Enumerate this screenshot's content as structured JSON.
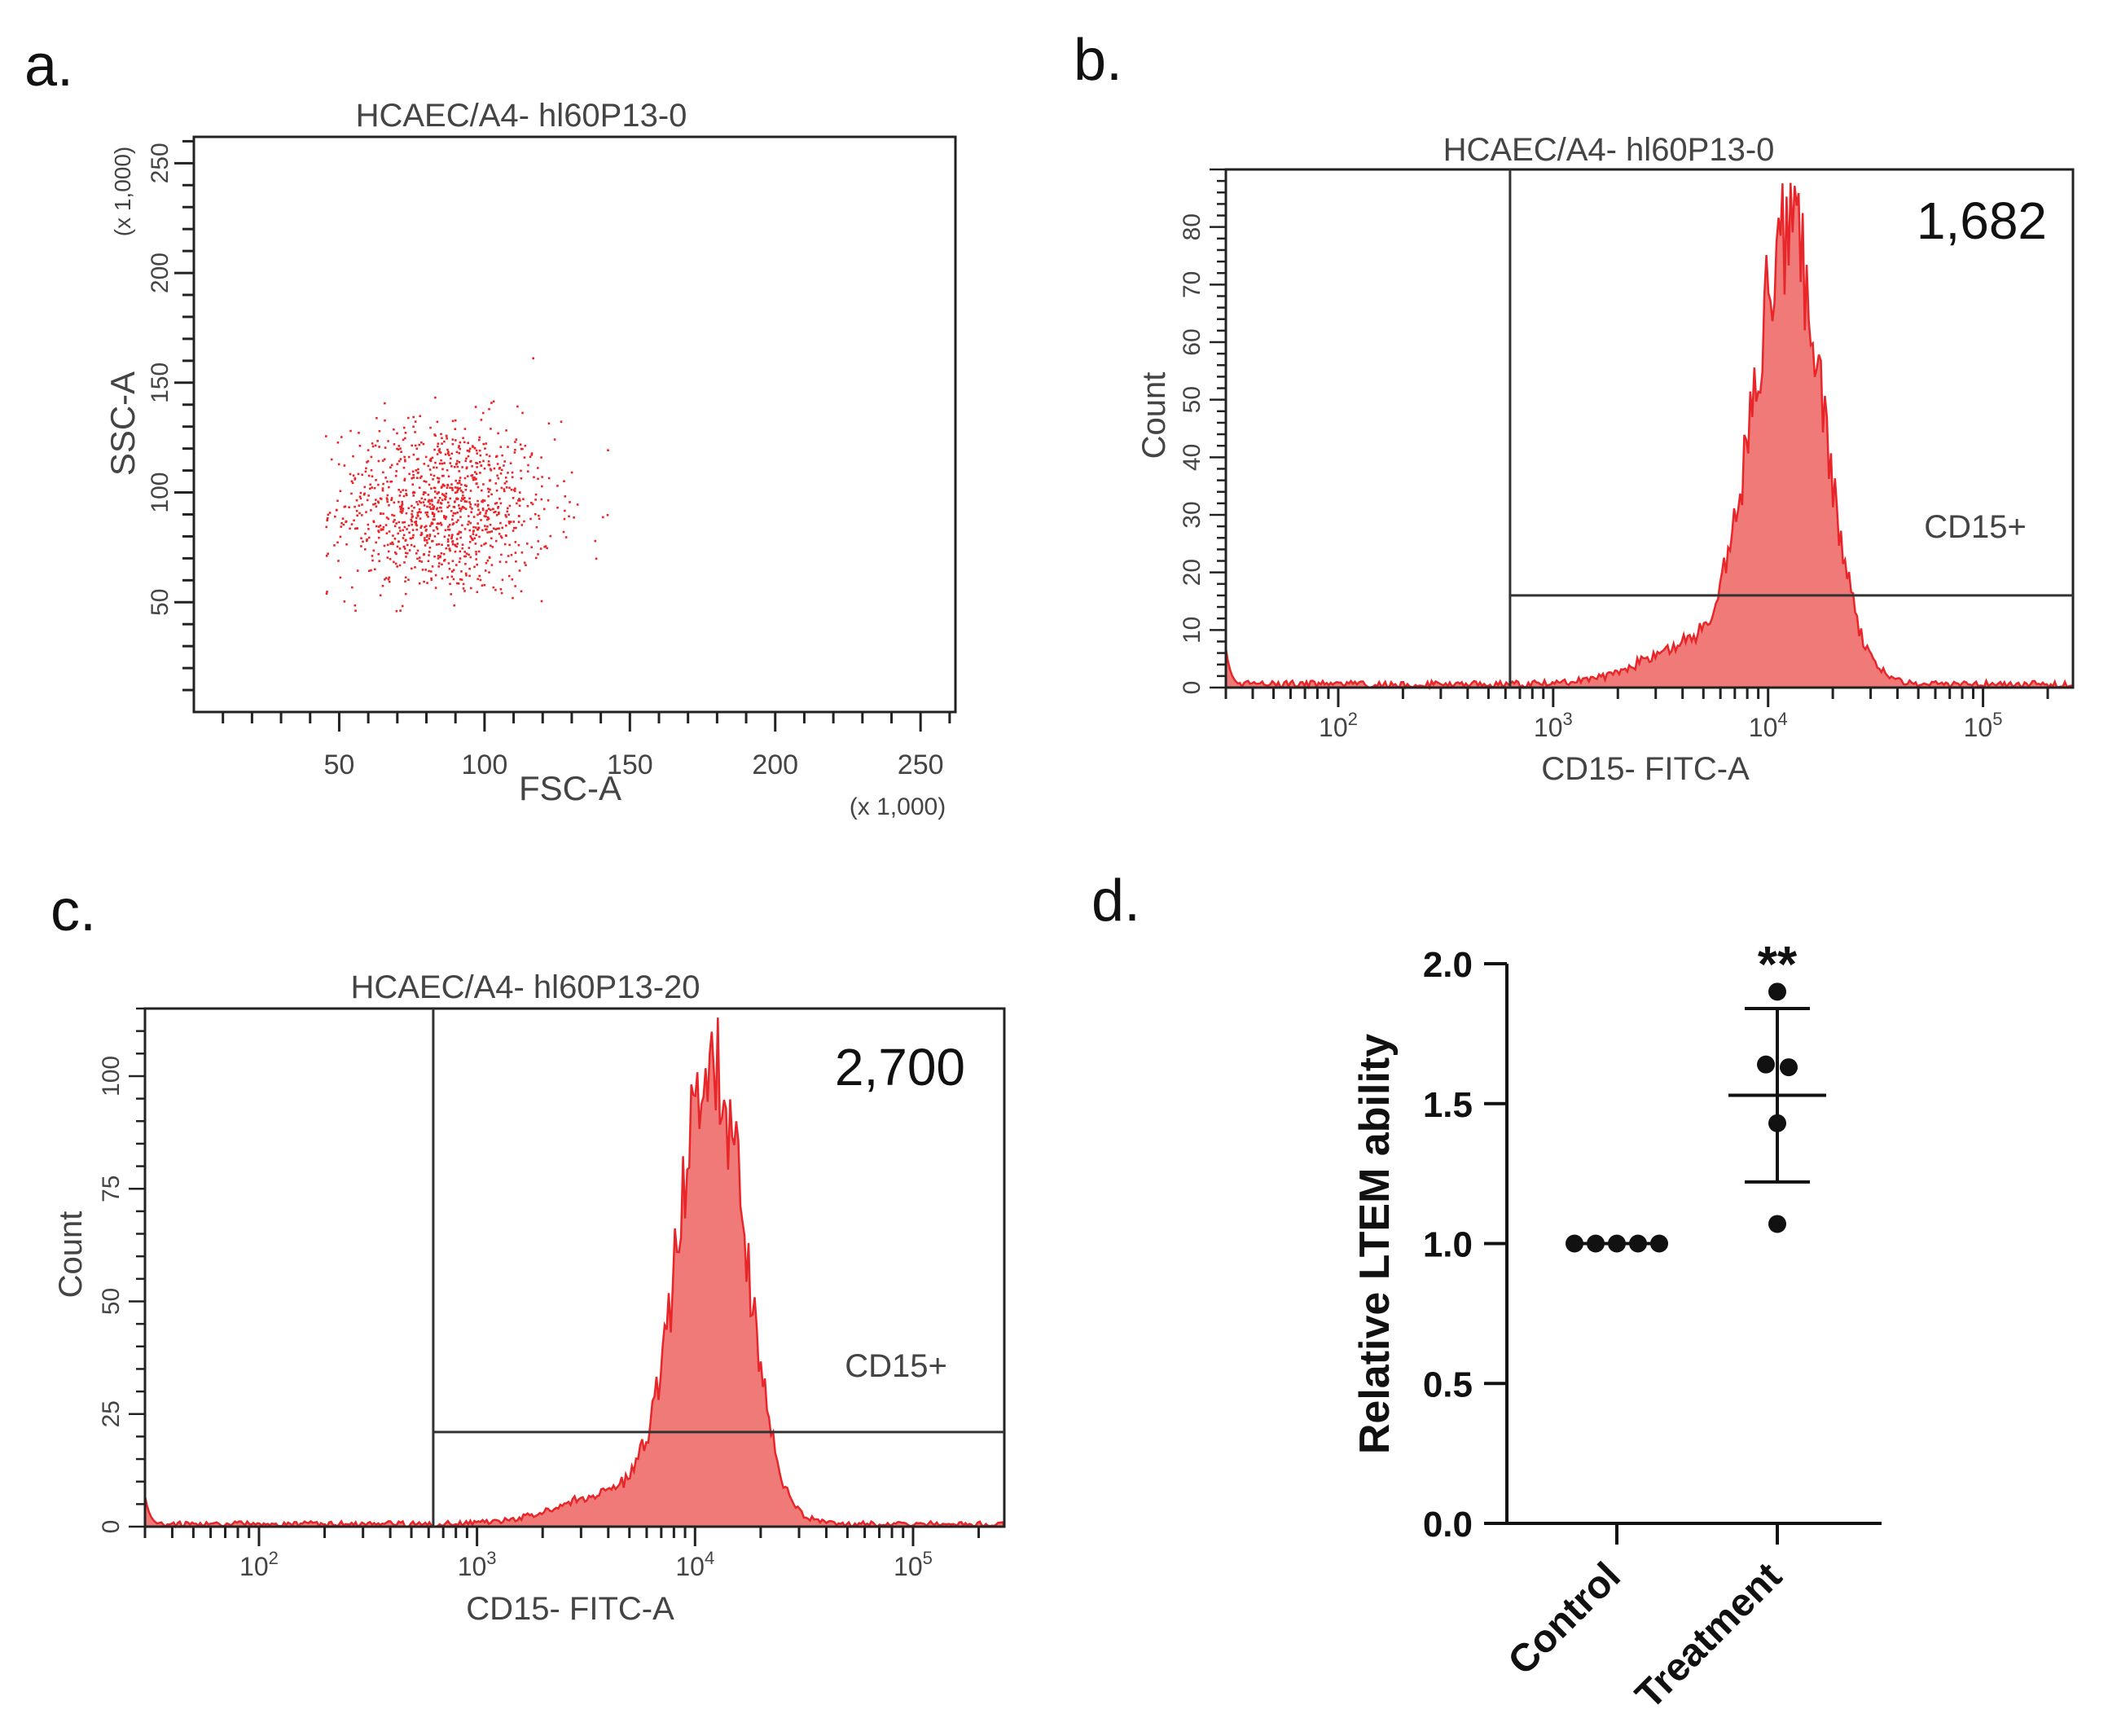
{
  "colors": {
    "data_red": "#e8262a",
    "fill_red": "#f07a78",
    "axis": "#222222",
    "gate": "#333333",
    "text": "#111111",
    "gray_text": "#444444"
  },
  "panels": {
    "a": {
      "letter": "a."
    },
    "b": {
      "letter": "b."
    },
    "c": {
      "letter": "c."
    },
    "d": {
      "letter": "d."
    }
  },
  "chart_data": [
    {
      "id": "a",
      "type": "scatter",
      "title": "HCAEC/A4- hl60P13-0",
      "xlabel": "FSC-A",
      "ylabel": "SSC-A",
      "x_multiplier": "(x 1,000)",
      "y_multiplier": "(x 1,000)",
      "xlim": [
        0,
        262
      ],
      "ylim": [
        0,
        262
      ],
      "x_ticks": [
        50,
        100,
        150,
        200,
        250
      ],
      "y_ticks": [
        50,
        100,
        150,
        200,
        250
      ],
      "x_tick_labels": [
        "50",
        "100",
        "150",
        "200",
        "250"
      ],
      "y_tick_labels": [
        "50",
        "100",
        "150",
        "200",
        "250"
      ],
      "cloud": {
        "center_x": 85,
        "center_y": 93,
        "spread_x": 19,
        "spread_y": 20,
        "n_points": 1100
      }
    },
    {
      "id": "b",
      "type": "histogram",
      "title": "HCAEC/A4- hl60P13-0",
      "xlabel": "CD15- FITC-A",
      "ylabel": "Count",
      "x_scale": "log",
      "xlim": [
        30,
        262144
      ],
      "ylim": [
        0,
        90
      ],
      "y_ticks": [
        0,
        10,
        20,
        30,
        40,
        50,
        60,
        70,
        80
      ],
      "y_tick_labels": [
        "0",
        "10",
        "20",
        "30",
        "40",
        "50",
        "60",
        "70",
        "80"
      ],
      "x_decades": [
        2,
        3,
        4,
        5
      ],
      "gate_x": 630,
      "gate_y": 16,
      "gate_label": "CD15+",
      "event_count": "1,682",
      "peak": {
        "log_center": 4.1,
        "width": 0.16,
        "height": 78,
        "max": 89
      }
    },
    {
      "id": "c",
      "type": "histogram",
      "title": "HCAEC/A4- hl60P13-20",
      "xlabel": "CD15- FITC-A",
      "ylabel": "Count",
      "x_scale": "log",
      "xlim": [
        30,
        262144
      ],
      "ylim": [
        0,
        115
      ],
      "y_ticks": [
        0,
        25,
        50,
        75,
        100
      ],
      "y_tick_labels": [
        "0",
        "25",
        "50",
        "75",
        "100"
      ],
      "x_decades": [
        2,
        3,
        4,
        5
      ],
      "gate_x": 630,
      "gate_y": 21,
      "gate_label": "CD15+",
      "event_count": "2,700",
      "peak": {
        "log_center": 4.08,
        "width": 0.15,
        "height": 102,
        "max": 113
      }
    },
    {
      "id": "d",
      "type": "scatter",
      "ylabel": "Relative LTEM ability",
      "categories": [
        "Control",
        "Treatment"
      ],
      "ylim": [
        0,
        2.0
      ],
      "y_ticks": [
        0.0,
        0.5,
        1.0,
        1.5,
        2.0
      ],
      "y_tick_labels": [
        "0.0",
        "0.5",
        "1.0",
        "1.5",
        "2.0"
      ],
      "series": [
        {
          "name": "Control",
          "values": [
            1.0,
            1.0,
            1.0,
            1.0,
            1.0
          ],
          "mean": 1.0,
          "sd": 0.0
        },
        {
          "name": "Treatment",
          "values": [
            1.9,
            1.64,
            1.63,
            1.43,
            1.07
          ],
          "mean": 1.53,
          "sd": 0.31
        }
      ],
      "significance": "**"
    }
  ]
}
